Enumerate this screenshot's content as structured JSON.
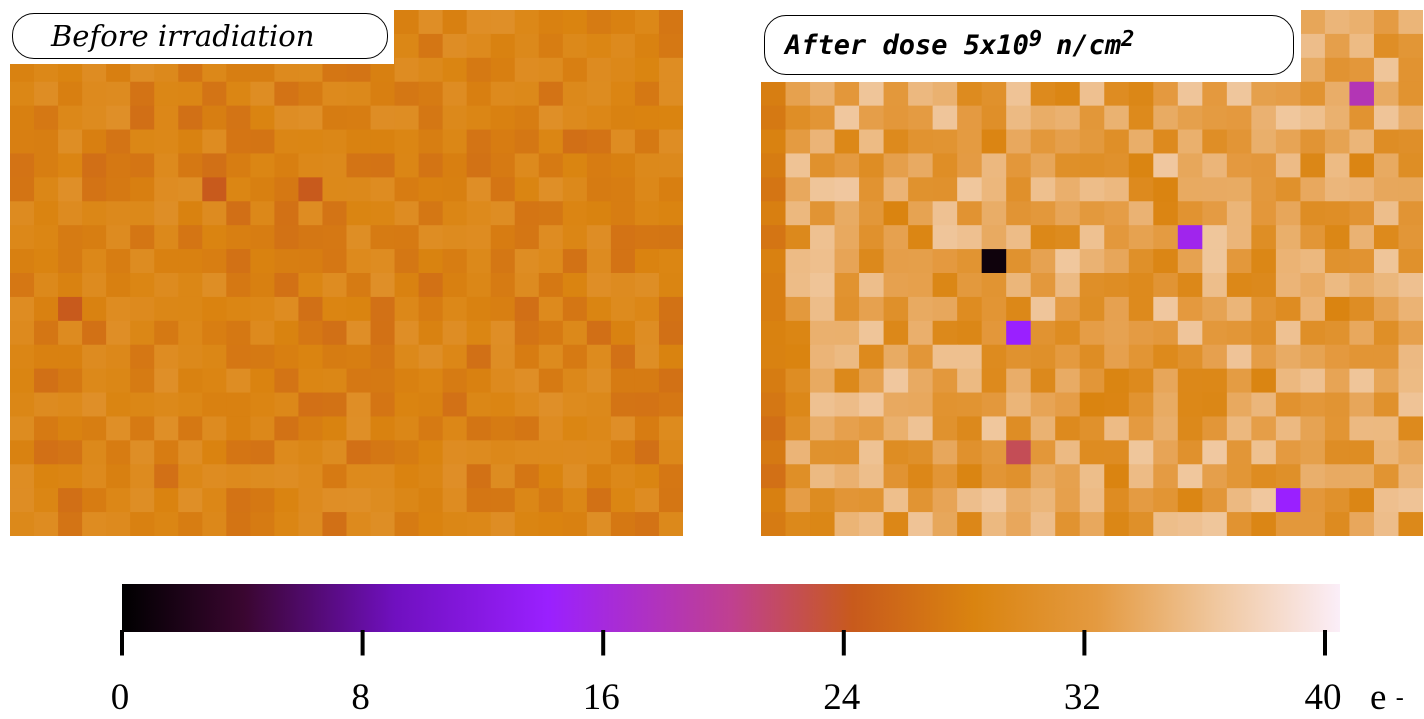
{
  "panels": {
    "before": {
      "title": "Before irradiation"
    },
    "after": {
      "title_main": "After dose 5x10",
      "title_exp": "9",
      "title_unit": "n/cm",
      "title_unit_exp": "2"
    }
  },
  "chart_data": [
    {
      "type": "heatmap",
      "title": "Before irradiation",
      "grid": {
        "rows": 22,
        "cols": 28
      },
      "typical_value_range": [
        26,
        30
      ],
      "notable_pixels": [
        {
          "row": 7,
          "col": 8,
          "value": 24
        },
        {
          "row": 7,
          "col": 12,
          "value": 24
        },
        {
          "row": 12,
          "col": 2,
          "value": 24
        }
      ]
    },
    {
      "type": "heatmap",
      "title": "After dose 5x10^9 n/cm^2",
      "grid": {
        "rows": 22,
        "cols": 27
      },
      "typical_value_range": [
        28,
        36
      ],
      "notable_pixels": [
        {
          "row": 3,
          "col": 24,
          "value": 18
        },
        {
          "row": 9,
          "col": 17,
          "value": 15
        },
        {
          "row": 10,
          "col": 9,
          "value": 1
        },
        {
          "row": 13,
          "col": 10,
          "value": 14
        },
        {
          "row": 20,
          "col": 21,
          "value": 14
        },
        {
          "row": 18,
          "col": 10,
          "value": 22
        }
      ]
    }
  ],
  "colorbar": {
    "min": 0,
    "max": 40,
    "ticks": [
      "0",
      "8",
      "16",
      "24",
      "32",
      "40"
    ],
    "tick_values": [
      0,
      8,
      16,
      24,
      32,
      40
    ],
    "unit": "e",
    "unit_sup": "-",
    "stops": [
      {
        "value": 0,
        "color": "#000000"
      },
      {
        "value": 4,
        "color": "#3a0630"
      },
      {
        "value": 9,
        "color": "#7010c0"
      },
      {
        "value": 14,
        "color": "#9a20ff"
      },
      {
        "value": 20,
        "color": "#c04090"
      },
      {
        "value": 24,
        "color": "#c85a1c"
      },
      {
        "value": 28,
        "color": "#da8410"
      },
      {
        "value": 32,
        "color": "#e49a40"
      },
      {
        "value": 36,
        "color": "#f0c8a0"
      },
      {
        "value": 40,
        "color": "#fbeef8"
      }
    ]
  }
}
